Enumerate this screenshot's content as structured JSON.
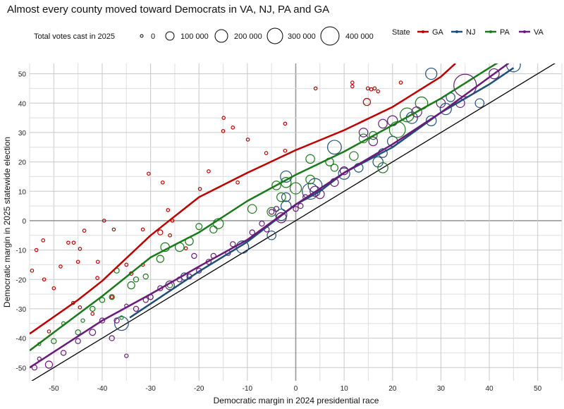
{
  "chart_data": {
    "type": "scatter",
    "title": "Almost every county moved toward Democrats in VA, NJ, PA and GA",
    "xlabel": "Democratic margin in 2024 presidential race",
    "ylabel": "Democratic margin in 2025 statewide election",
    "xlim": [
      -55,
      55
    ],
    "ylim": [
      -54.5,
      53.5
    ],
    "xticks": [
      -50,
      -40,
      -30,
      -20,
      -10,
      0,
      10,
      20,
      30,
      40,
      50
    ],
    "yticks": [
      -50,
      -40,
      -30,
      -20,
      -10,
      0,
      10,
      20,
      30,
      40,
      50
    ],
    "grid": true,
    "reference_line": "y = x",
    "size_legend": {
      "title": "Total votes cast in 2025",
      "entries": [
        "0",
        "100 000",
        "200 000",
        "300 000",
        "400 000"
      ],
      "values": [
        0,
        100000,
        200000,
        300000,
        400000
      ]
    },
    "color_legend": {
      "title": "State",
      "placement": "top-right"
    },
    "series": [
      {
        "name": "GA",
        "color": "#c00000",
        "points": [
          [
            -53.6,
            -10,
            3000
          ],
          [
            -52.2,
            -6.7,
            3000
          ],
          [
            -54.5,
            -17,
            3000
          ],
          [
            -50,
            -23,
            4000
          ],
          [
            -48.6,
            -15.6,
            4000
          ],
          [
            -47,
            -7.5,
            4000
          ],
          [
            -45.9,
            -7.5,
            4000
          ],
          [
            -43.7,
            -3.4,
            4000
          ],
          [
            -44.6,
            -9.6,
            4000
          ],
          [
            -45,
            -14,
            5000
          ],
          [
            -40.9,
            -14,
            5000
          ],
          [
            -39.6,
            0,
            2000
          ],
          [
            -41,
            -19.5,
            8000
          ],
          [
            -37.6,
            -3,
            4000
          ],
          [
            -31.6,
            -3,
            4000
          ],
          [
            -30.4,
            16,
            3000
          ],
          [
            -27.5,
            13,
            3000
          ],
          [
            -26.4,
            3.6,
            6000
          ],
          [
            -25.5,
            0,
            5000
          ],
          [
            -19.8,
            10.8,
            3000
          ],
          [
            -18,
            16.8,
            4000
          ],
          [
            -14.9,
            35,
            3000
          ],
          [
            -15,
            30.5,
            2000
          ],
          [
            -13,
            31.7,
            3000
          ],
          [
            -9.9,
            27.6,
            4000
          ],
          [
            -6.1,
            23,
            4000
          ],
          [
            -2.2,
            33,
            3000
          ],
          [
            -2.2,
            23.8,
            5000
          ],
          [
            4.1,
            45,
            3000
          ],
          [
            11.7,
            47,
            3000
          ],
          [
            11.7,
            45.7,
            3000
          ],
          [
            14.9,
            45,
            8000
          ],
          [
            15.6,
            44.7,
            8000
          ],
          [
            16.3,
            45,
            8000
          ],
          [
            17,
            44,
            6000
          ],
          [
            14.7,
            40.4,
            40000
          ],
          [
            21.7,
            47,
            5000
          ],
          [
            -22.7,
            -9.4,
            6000
          ],
          [
            -31.6,
            -15,
            5000
          ],
          [
            -35,
            -15,
            8000
          ],
          [
            -42,
            -31.7,
            4000
          ],
          [
            -46,
            -28,
            4000
          ],
          [
            -51,
            -37.7,
            4000
          ],
          [
            -52,
            -20,
            3000
          ],
          [
            -44.6,
            -29.5,
            5000
          ],
          [
            -28,
            -4,
            20000
          ],
          [
            -34,
            -18,
            10000
          ],
          [
            -38,
            -26,
            6000
          ],
          [
            -26,
            -5,
            8000
          ],
          [
            -12,
            13,
            8000
          ]
        ],
        "trend": [
          [
            -55,
            -38.5
          ],
          [
            -45,
            -27
          ],
          [
            -40,
            -20.5
          ],
          [
            -30,
            -5
          ],
          [
            -20,
            8
          ],
          [
            -10,
            16.3
          ],
          [
            0,
            24
          ],
          [
            10,
            30.8
          ],
          [
            20,
            38.7
          ],
          [
            30,
            49
          ],
          [
            33,
            53.5
          ]
        ]
      },
      {
        "name": "NJ",
        "color": "#1f4e79",
        "points": [
          [
            -36,
            -35,
            150000
          ],
          [
            -23,
            -19,
            40000
          ],
          [
            -11,
            -9,
            120000
          ],
          [
            -5,
            -5,
            60000
          ],
          [
            -2,
            5,
            80000
          ],
          [
            -3,
            2,
            100000
          ],
          [
            -2,
            15,
            100000
          ],
          [
            -2,
            8,
            60000
          ],
          [
            3,
            10,
            200000
          ],
          [
            4,
            12,
            150000
          ],
          [
            8,
            25,
            150000
          ],
          [
            10,
            16,
            100000
          ],
          [
            13,
            18,
            60000
          ],
          [
            17,
            20,
            80000
          ],
          [
            18,
            23,
            60000
          ],
          [
            20,
            27,
            80000
          ],
          [
            24,
            35,
            100000
          ],
          [
            28,
            50,
            100000
          ],
          [
            31,
            38,
            100000
          ],
          [
            32,
            42,
            60000
          ],
          [
            38,
            40,
            60000
          ],
          [
            45,
            53,
            150000
          ],
          [
            28,
            34,
            80000
          ]
        ],
        "trend": [
          [
            -34.3,
            -33
          ],
          [
            -20,
            -17.3
          ],
          [
            -10,
            -7.2
          ],
          [
            0,
            5.5
          ],
          [
            5,
            10
          ],
          [
            10,
            16.3
          ],
          [
            20,
            25
          ],
          [
            30,
            36.8
          ],
          [
            40,
            46.4
          ],
          [
            45,
            52
          ]
        ]
      },
      {
        "name": "PA",
        "color": "#1a7a1a",
        "points": [
          [
            -53,
            -42,
            5000
          ],
          [
            -50,
            -41,
            20000
          ],
          [
            -48,
            -35,
            10000
          ],
          [
            -45,
            -38,
            20000
          ],
          [
            -44,
            -34,
            10000
          ],
          [
            -42,
            -30,
            20000
          ],
          [
            -40,
            -27,
            20000
          ],
          [
            -38,
            -26,
            20000
          ],
          [
            -37,
            -17,
            20000
          ],
          [
            -36,
            -33,
            10000
          ],
          [
            -34,
            -22,
            40000
          ],
          [
            -33,
            -20,
            20000
          ],
          [
            -31,
            -19,
            20000
          ],
          [
            -30,
            -26,
            20000
          ],
          [
            -28,
            -13,
            40000
          ],
          [
            -27,
            -9,
            60000
          ],
          [
            -26,
            -22,
            20000
          ],
          [
            -24,
            -9,
            60000
          ],
          [
            -22,
            -7,
            50000
          ],
          [
            -20,
            -2,
            30000
          ],
          [
            -17,
            -3,
            40000
          ],
          [
            -16,
            -1,
            80000
          ],
          [
            -9,
            4,
            60000
          ],
          [
            -5,
            3,
            60000
          ],
          [
            -3,
            8,
            60000
          ],
          [
            -2,
            13,
            80000
          ],
          [
            0,
            11,
            100000
          ],
          [
            3,
            14,
            60000
          ],
          [
            7,
            20,
            50000
          ],
          [
            -4,
            12,
            60000
          ],
          [
            12,
            22,
            60000
          ],
          [
            14,
            28,
            60000
          ],
          [
            16,
            29,
            50000
          ],
          [
            21,
            31,
            200000
          ],
          [
            23,
            36,
            150000
          ],
          [
            26,
            40,
            120000
          ],
          [
            8,
            18,
            40000
          ],
          [
            18,
            18,
            80000
          ],
          [
            3,
            21,
            60000
          ]
        ],
        "trend": [
          [
            -55,
            -44.2
          ],
          [
            -40,
            -25.7
          ],
          [
            -30,
            -12.5
          ],
          [
            -25,
            -8.2
          ],
          [
            -20,
            -4
          ],
          [
            -10,
            6.7
          ],
          [
            0,
            15.6
          ],
          [
            10,
            23.5
          ],
          [
            20,
            32.5
          ],
          [
            30,
            41.6
          ],
          [
            40,
            52
          ],
          [
            42,
            54
          ]
        ]
      },
      {
        "name": "VA",
        "color": "#6a1a7a",
        "points": [
          [
            -54,
            -50,
            20000
          ],
          [
            -53,
            -47,
            10000
          ],
          [
            -51,
            -49,
            40000
          ],
          [
            -48,
            -45,
            20000
          ],
          [
            -45,
            -41,
            20000
          ],
          [
            -42,
            -38,
            30000
          ],
          [
            -40,
            -34,
            20000
          ],
          [
            -37,
            -34,
            20000
          ],
          [
            -35,
            -29,
            10000
          ],
          [
            -33,
            -30,
            20000
          ],
          [
            -31,
            -27,
            20000
          ],
          [
            -30,
            -26,
            20000
          ],
          [
            -28,
            -23,
            20000
          ],
          [
            -26,
            -22,
            60000
          ],
          [
            -24,
            -20,
            20000
          ],
          [
            -22,
            -19,
            20000
          ],
          [
            -20,
            -17,
            20000
          ],
          [
            -18,
            -14,
            20000
          ],
          [
            -17,
            -12,
            20000
          ],
          [
            -14,
            -11,
            20000
          ],
          [
            -13,
            -8,
            20000
          ],
          [
            -9,
            -4,
            20000
          ],
          [
            -7,
            -1,
            20000
          ],
          [
            -6,
            -3,
            20000
          ],
          [
            -5,
            3,
            20000
          ],
          [
            -4,
            4,
            20000
          ],
          [
            -3,
            1,
            80000
          ],
          [
            0,
            4,
            20000
          ],
          [
            1,
            5,
            20000
          ],
          [
            2,
            8,
            20000
          ],
          [
            4,
            10,
            80000
          ],
          [
            5,
            9,
            60000
          ],
          [
            8,
            13,
            50000
          ],
          [
            10,
            17,
            50000
          ],
          [
            14,
            30,
            60000
          ],
          [
            16,
            27,
            60000
          ],
          [
            18,
            33,
            60000
          ],
          [
            20,
            34,
            80000
          ],
          [
            25,
            37,
            80000
          ],
          [
            30,
            40,
            60000
          ],
          [
            34,
            40,
            60000
          ],
          [
            35,
            46,
            400000
          ],
          [
            41,
            50,
            80000
          ],
          [
            -21,
            -12,
            20000
          ],
          [
            -38,
            -40,
            20000
          ],
          [
            -35,
            -46,
            10000
          ]
        ],
        "trend": [
          [
            -55,
            -50
          ],
          [
            -40,
            -34
          ],
          [
            -30,
            -25
          ],
          [
            -20,
            -15.6
          ],
          [
            -10,
            -6.5
          ],
          [
            0,
            5.5
          ],
          [
            10,
            16.3
          ],
          [
            20,
            26
          ],
          [
            30,
            36.8
          ],
          [
            40,
            48.8
          ],
          [
            44,
            53.6
          ]
        ]
      }
    ]
  }
}
